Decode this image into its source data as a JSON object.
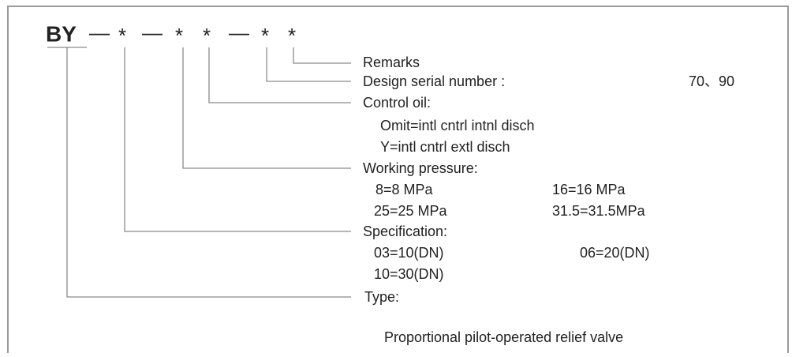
{
  "code": [
    "BY",
    "—",
    "*",
    "—",
    "*",
    "*",
    "—",
    "*",
    "*"
  ],
  "entries": [
    {
      "label": "Remarks"
    },
    {
      "label": "Design serial number :",
      "value": "70、90"
    },
    {
      "label": "Control oil:",
      "options": [
        "Omit=intl cntrl intnl disch",
        "Y=intl cntrl extl disch"
      ]
    },
    {
      "label": "Working  pressure:",
      "options": [
        "8=8 MPa",
        "16=16 MPa",
        "25=25 MPa",
        "31.5=31.5MPa"
      ]
    },
    {
      "label": "Specification:",
      "options": [
        "03=10(DN)",
        "06=20(DN)",
        "10=30(DN)"
      ]
    },
    {
      "label": "Type:",
      "options": [
        "Proportional pilot-operated relief valve"
      ]
    }
  ]
}
